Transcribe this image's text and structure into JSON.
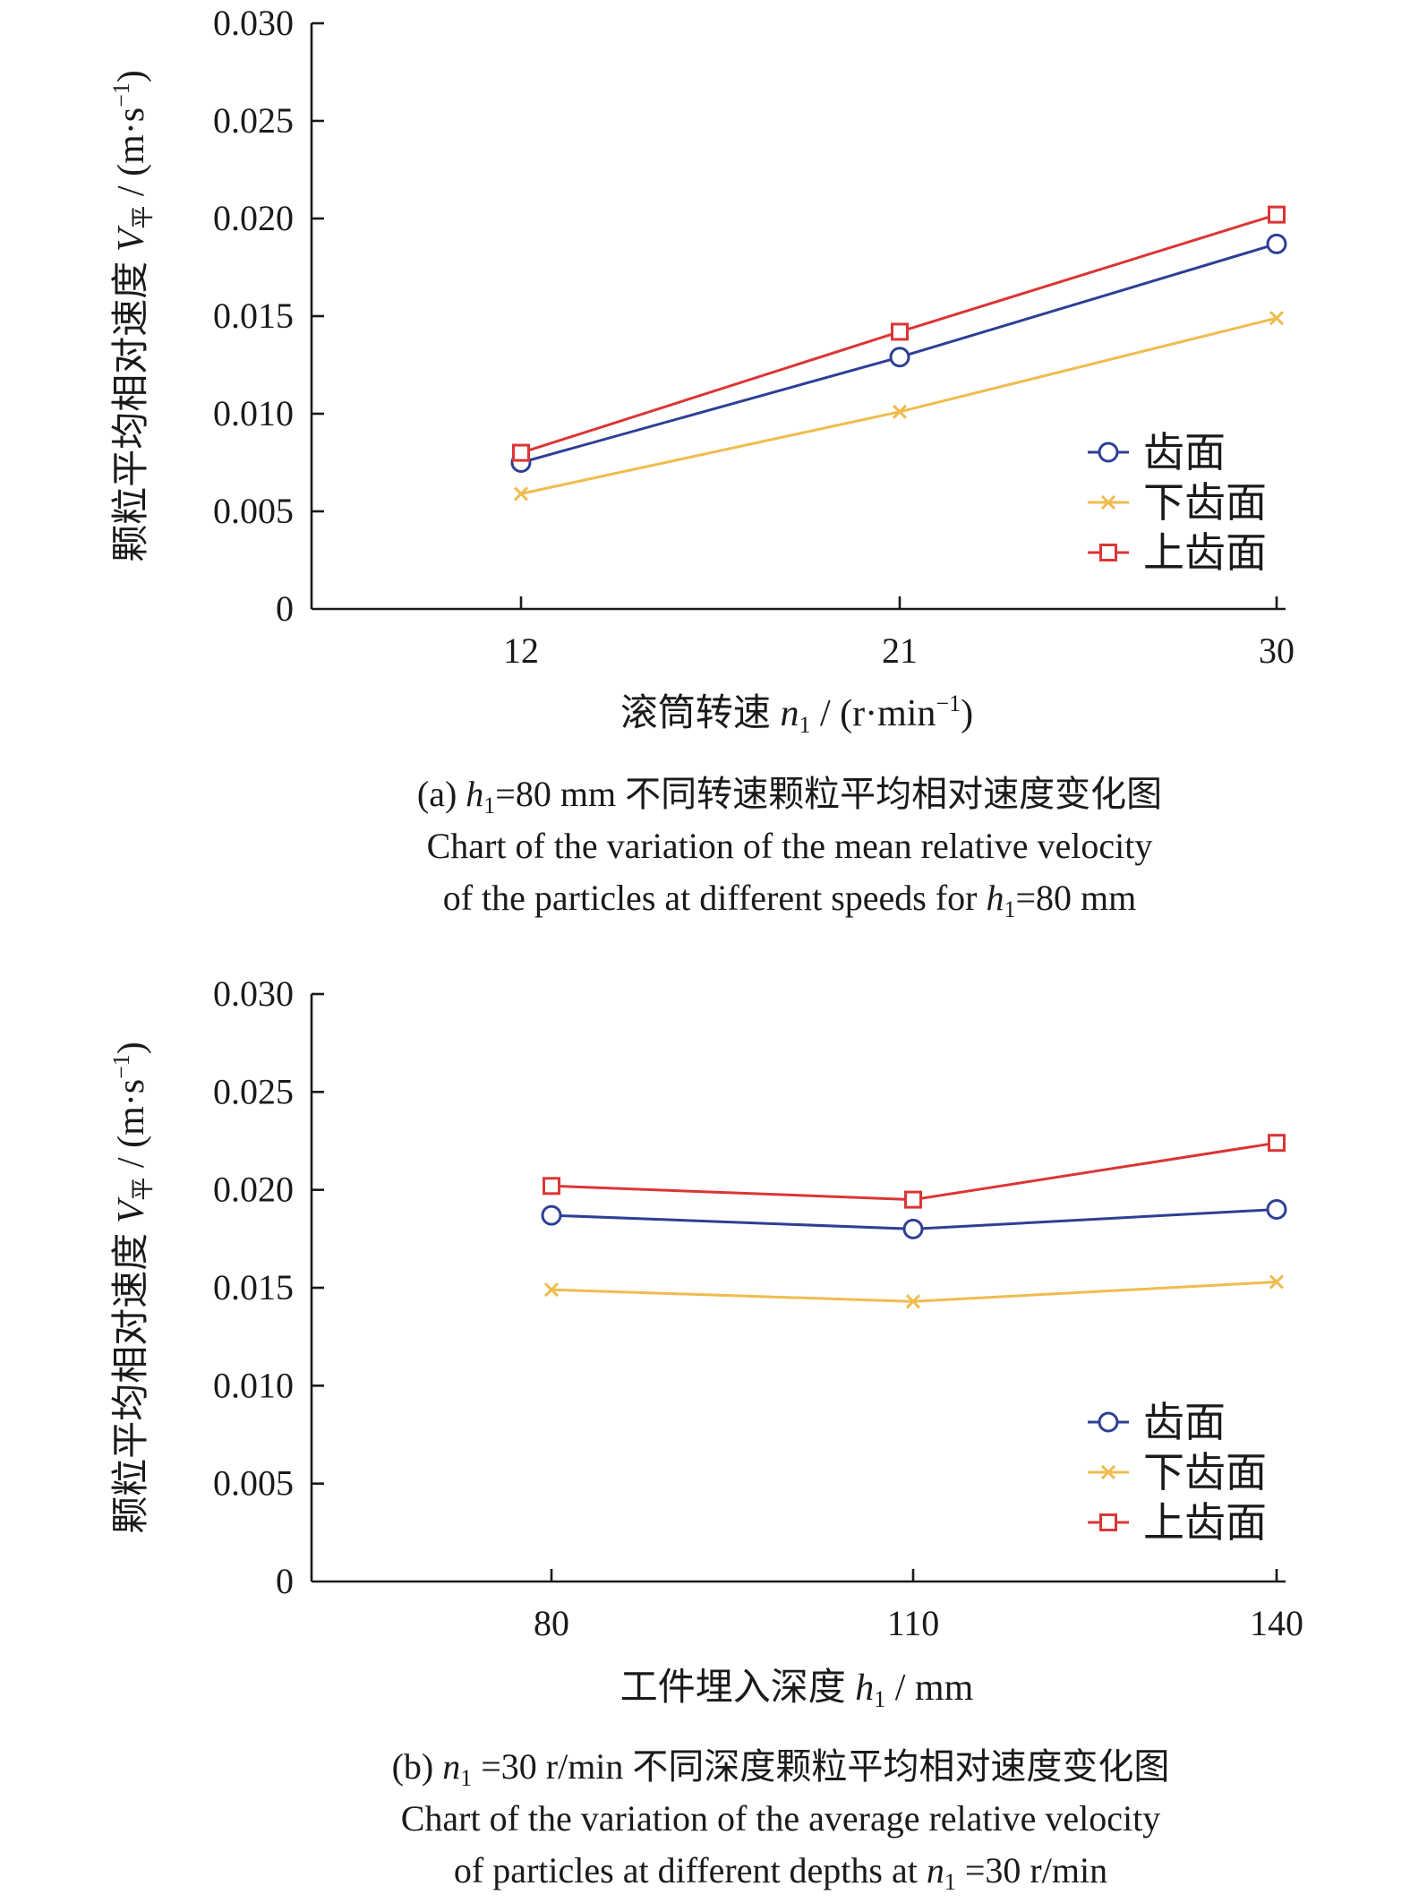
{
  "chart_data": [
    {
      "type": "line",
      "categories": [
        "12",
        "21",
        "30"
      ],
      "x": [
        12,
        21,
        30
      ],
      "ylim": [
        0,
        0.03
      ],
      "yticks": [
        "0",
        "0.005",
        "0.010",
        "0.015",
        "0.020",
        "0.025",
        "0.030"
      ],
      "ylabel": {
        "main": "颗粒平均相对速度 ",
        "var": "V",
        "sub": "平",
        "unit_pre": " / (m·s",
        "unit_sup": "−1",
        "unit_post": ")"
      },
      "xlabel": {
        "main": "滚筒转速 ",
        "var": "n",
        "sub": "1",
        "unit_pre": " / (r·min",
        "unit_sup": "−1",
        "unit_post": ")"
      },
      "grid": false,
      "legend_position": "lower-right",
      "series": [
        {
          "name": "齿面",
          "marker": "circle",
          "color": "#2e3f95",
          "values": [
            0.0075,
            0.0129,
            0.0187
          ]
        },
        {
          "name": "下齿面",
          "marker": "x",
          "color": "#f0bc4e",
          "values": [
            0.0059,
            0.0101,
            0.0149
          ]
        },
        {
          "name": "上齿面",
          "marker": "square",
          "color": "#dc3535",
          "values": [
            0.008,
            0.0142,
            0.0202
          ]
        }
      ],
      "caption": {
        "line1": {
          "pre": "(a) ",
          "var": "h",
          "sub": "1",
          "post": "=80 mm 不同转速颗粒平均相对速度变化图"
        },
        "line2": "Chart of the variation of the mean relative velocity",
        "line3": {
          "pre": "of the particles at different speeds for ",
          "var": "h",
          "sub": "1",
          "post": "=80 mm"
        }
      }
    },
    {
      "type": "line",
      "categories": [
        "80",
        "110",
        "140"
      ],
      "x": [
        80,
        110,
        140
      ],
      "ylim": [
        0,
        0.03
      ],
      "yticks": [
        "0",
        "0.005",
        "0.010",
        "0.015",
        "0.020",
        "0.025",
        "0.030"
      ],
      "ylabel": {
        "main": "颗粒平均相对速度 ",
        "var": "V",
        "sub": "平",
        "unit_pre": " / (m·s",
        "unit_sup": "−1",
        "unit_post": ")"
      },
      "xlabel": {
        "main": "工件埋入深度 ",
        "var": "h",
        "sub": "1",
        "unit_pre": " / mm",
        "unit_sup": "",
        "unit_post": ""
      },
      "grid": false,
      "legend_position": "lower-right",
      "series": [
        {
          "name": "齿面",
          "marker": "circle",
          "color": "#2e3f95",
          "values": [
            0.0187,
            0.018,
            0.019
          ]
        },
        {
          "name": "下齿面",
          "marker": "x",
          "color": "#f0bc4e",
          "values": [
            0.0149,
            0.0143,
            0.0153
          ]
        },
        {
          "name": "上齿面",
          "marker": "square",
          "color": "#dc3535",
          "values": [
            0.0202,
            0.0195,
            0.0224
          ]
        }
      ],
      "caption": {
        "line1": {
          "pre": "(b) ",
          "var": "n",
          "sub": "1",
          "post": " =30 r/min 不同深度颗粒平均相对速度变化图"
        },
        "line2": "Chart of the variation of the average relative velocity",
        "line3": {
          "pre": "of particles at different depths at ",
          "var": "n",
          "sub": "1",
          "post": " =30 r/min"
        }
      }
    }
  ]
}
